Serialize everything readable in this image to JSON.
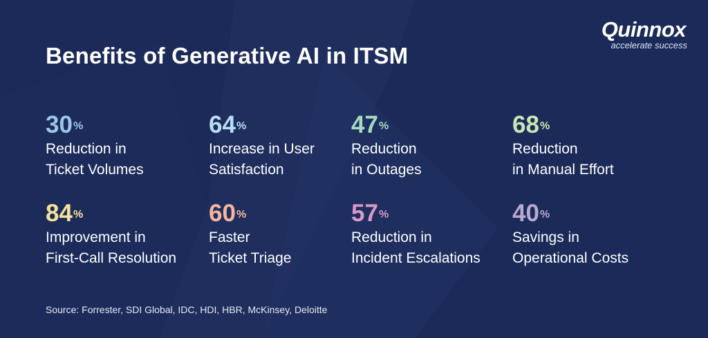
{
  "title": "Benefits of Generative AI in ITSM",
  "logo": {
    "wordmark": "Quinnox",
    "tagline": "accelerate success"
  },
  "colors": {
    "background": "#1b2a58",
    "stat1": "#9cc6e8",
    "stat2": "#b7dff3",
    "stat3": "#a8d9c4",
    "stat4": "#c8e6b4",
    "stat5": "#f6e39a",
    "stat6": "#f4b79e",
    "stat7": "#d79bc6",
    "stat8": "#b7a9cf"
  },
  "stats": [
    {
      "value": "30",
      "unit": "%",
      "line1": "Reduction in",
      "line2": "Ticket Volumes"
    },
    {
      "value": "64",
      "unit": "%",
      "line1": "Increase in User",
      "line2": "Satisfaction"
    },
    {
      "value": "47",
      "unit": "%",
      "line1": "Reduction",
      "line2": "in Outages"
    },
    {
      "value": "68",
      "unit": "%",
      "line1": "Reduction",
      "line2": "in Manual Effort"
    },
    {
      "value": "84",
      "unit": "%",
      "line1": "Improvement in",
      "line2": "First-Call Resolution"
    },
    {
      "value": "60",
      "unit": "%",
      "line1": "Faster",
      "line2": "Ticket Triage"
    },
    {
      "value": "57",
      "unit": "%",
      "line1": "Reduction in",
      "line2": "Incident Escalations"
    },
    {
      "value": "40",
      "unit": "%",
      "line1": "Savings in",
      "line2": "Operational Costs"
    }
  ],
  "source": "Source: Forrester, SDI Global, IDC, HDI, HBR, McKinsey, Deloitte"
}
